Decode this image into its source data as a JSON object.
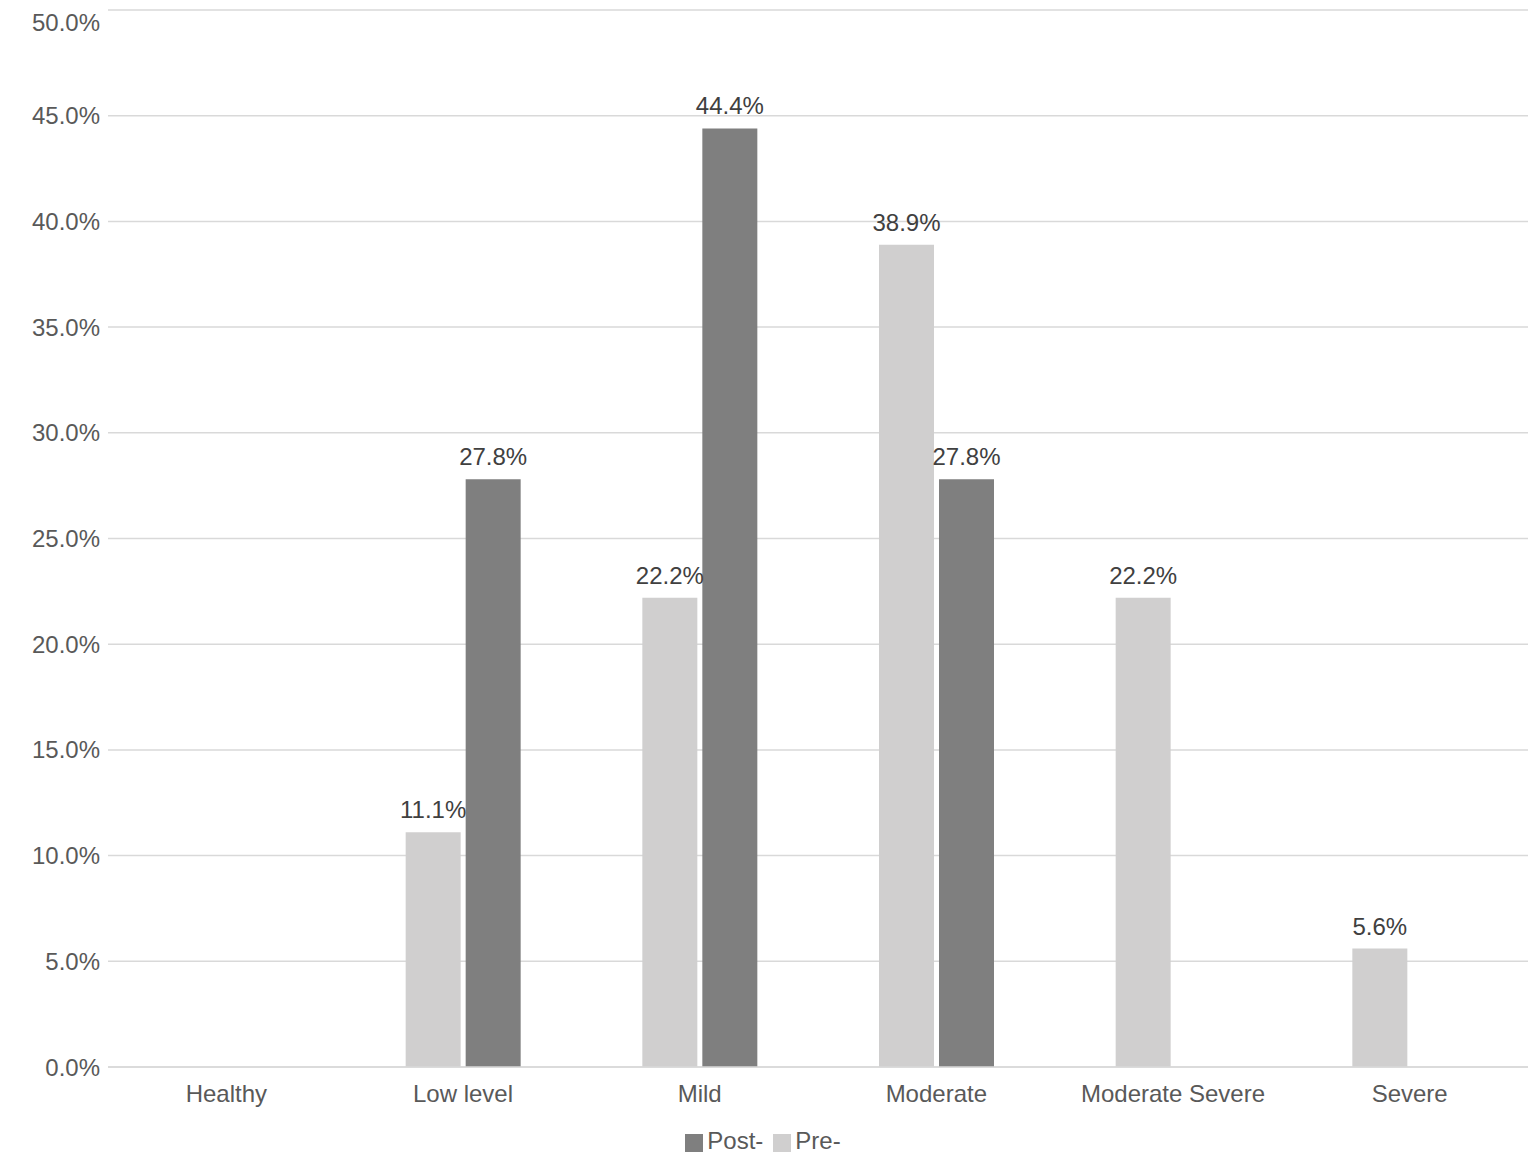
{
  "chart_data": {
    "type": "bar",
    "categories": [
      "Healthy",
      "Low level",
      "Mild",
      "Moderate",
      "Moderate Severe",
      "Severe"
    ],
    "series": [
      {
        "name": "Pre-",
        "color": "#d0cfcf",
        "values": [
          null,
          11.1,
          22.2,
          38.9,
          22.2,
          5.6
        ],
        "value_labels": [
          null,
          "11.1%",
          "22.2%",
          "38.9%",
          "22.2%",
          "5.6%"
        ]
      },
      {
        "name": "Post-",
        "color": "#7f7f7f",
        "values": [
          null,
          27.8,
          44.4,
          27.8,
          null,
          null
        ],
        "value_labels": [
          null,
          "27.8%",
          "44.4%",
          "27.8%",
          null,
          null
        ]
      }
    ],
    "ylim": [
      0,
      50
    ],
    "yticks": [
      {
        "value": 0,
        "label": "0.0%"
      },
      {
        "value": 5,
        "label": "5.0%"
      },
      {
        "value": 10,
        "label": "10.0%"
      },
      {
        "value": 15,
        "label": "15.0%"
      },
      {
        "value": 20,
        "label": "20.0%"
      },
      {
        "value": 25,
        "label": "25.0%"
      },
      {
        "value": 30,
        "label": "30.0%"
      },
      {
        "value": 35,
        "label": "35.0%"
      },
      {
        "value": 40,
        "label": "40.0%"
      },
      {
        "value": 45,
        "label": "45.0%"
      },
      {
        "value": 50,
        "label": "50.0%"
      }
    ],
    "grid": true,
    "legend": "bottom",
    "data_labels": true
  }
}
